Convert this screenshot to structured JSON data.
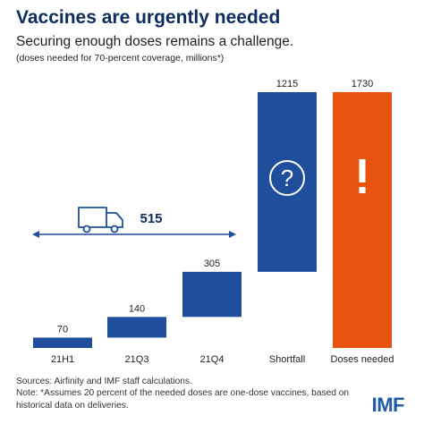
{
  "header": {
    "title": "Vaccines are urgently needed",
    "subtitle": "Securing enough doses remains a challenge.",
    "unit_note": "(doses needed for 70-percent coverage, millions*)"
  },
  "chart_data": {
    "type": "bar",
    "subtype": "waterfall",
    "categories": [
      "21H1",
      "21Q3",
      "21Q4",
      "Shortfall",
      "Doses needed"
    ],
    "values": [
      70,
      140,
      305,
      1215,
      1730
    ],
    "value_labels": [
      "70",
      "140",
      "305",
      "1215",
      "1730"
    ],
    "bar_start": [
      0,
      70,
      210,
      515,
      0
    ],
    "bar_end": [
      70,
      210,
      515,
      1730,
      1730
    ],
    "ylim": [
      0,
      1730
    ],
    "colors": {
      "delivered": "#1f4e9c",
      "shortfall": "#1f4e9c",
      "total": "#e8530f",
      "arrow": "#1f4e9c",
      "label": "#0d2d5e"
    },
    "icons": {
      "shortfall": "question-mark-icon",
      "total": "exclamation-icon",
      "deliveries": "truck-icon"
    },
    "annotation": {
      "label": "515",
      "spans_categories": [
        "21H1",
        "21Q3",
        "21Q4"
      ]
    },
    "grid": false,
    "legend": "none"
  },
  "footer": {
    "sources": "Sources: Airfinity and IMF staff calculations.",
    "note_line1": "Note: *Assumes 20 percent of the needed doses are one-dose vaccines, based on",
    "note_line2": "historical data on deliveries.",
    "logo": "IMF"
  }
}
